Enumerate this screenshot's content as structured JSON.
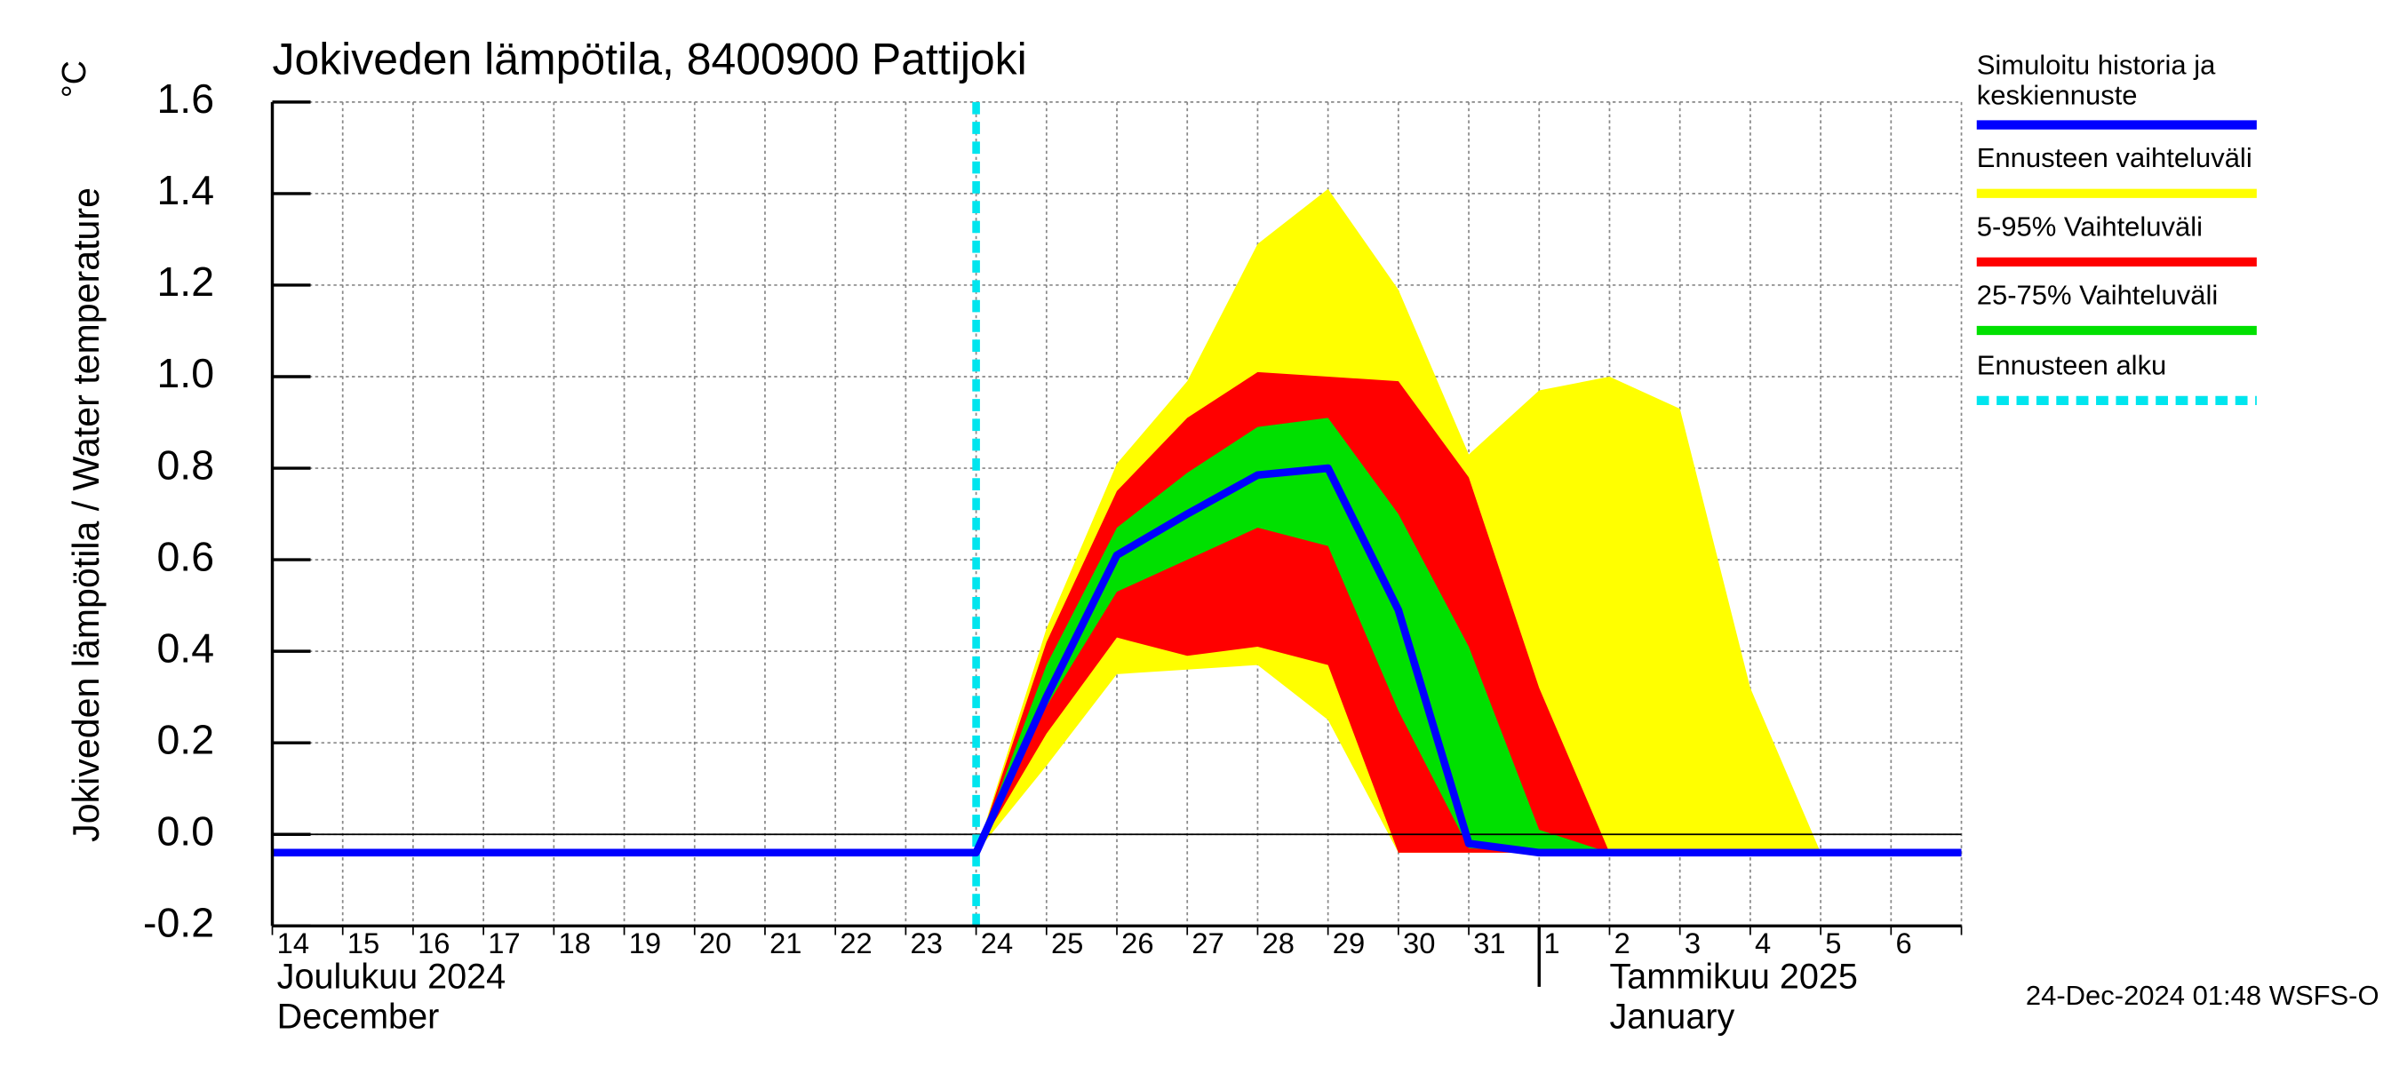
{
  "chart_data": {
    "type": "band-line",
    "title": "Jokiveden lämpötila, 8400900 Pattijoki",
    "y_label": "Jokiveden lämpötila / Water temperature",
    "y_unit": "°C",
    "categories": [
      "14",
      "15",
      "16",
      "17",
      "18",
      "19",
      "20",
      "21",
      "22",
      "23",
      "24",
      "25",
      "26",
      "27",
      "28",
      "29",
      "30",
      "31",
      "1",
      "2",
      "3",
      "4",
      "5",
      "6",
      null
    ],
    "months": [
      {
        "index": 0,
        "label": "Joulukuu  2024",
        "label_en": "December"
      },
      {
        "index": 18,
        "label": "Tammikuu  2025",
        "label_en": "January"
      }
    ],
    "ylim": [
      -0.2,
      1.6
    ],
    "yticks": [
      -0.2,
      {
        "value": 0,
        "label": "0.0"
      },
      0.2,
      0.4,
      0.6,
      0.8,
      {
        "value": 1,
        "label": "1.0"
      },
      1.2,
      1.4,
      1.6
    ],
    "grid": true,
    "bands": [
      {
        "name": "Ennusteen vaihteluväli",
        "color": "#ffff00",
        "high": [
          null,
          null,
          null,
          null,
          null,
          null,
          null,
          null,
          null,
          null,
          -0.04,
          0.45,
          0.81,
          0.99,
          1.29,
          1.41,
          1.19,
          0.83,
          0.97,
          1.0,
          0.93,
          0.32,
          -0.04,
          null,
          null
        ],
        "low": [
          null,
          null,
          null,
          null,
          null,
          null,
          null,
          null,
          null,
          null,
          -0.04,
          0.15,
          0.35,
          0.36,
          0.37,
          0.25,
          -0.04,
          -0.04,
          -0.04,
          -0.04,
          -0.04,
          -0.04,
          -0.04,
          null,
          null
        ]
      },
      {
        "name": "5-95% Vaihteluväli",
        "color": "#ff0000",
        "high": [
          null,
          null,
          null,
          null,
          null,
          null,
          null,
          null,
          null,
          null,
          -0.04,
          0.42,
          0.75,
          0.91,
          1.01,
          1.0,
          0.99,
          0.78,
          0.32,
          -0.04,
          null,
          null,
          null,
          null,
          null
        ],
        "low": [
          null,
          null,
          null,
          null,
          null,
          null,
          null,
          null,
          null,
          null,
          -0.04,
          0.22,
          0.43,
          0.39,
          0.41,
          0.37,
          -0.04,
          -0.04,
          -0.04,
          -0.04,
          null,
          null,
          null,
          null,
          null
        ]
      },
      {
        "name": "25-75% Vaihteluväli",
        "color": "#00e000",
        "high": [
          null,
          null,
          null,
          null,
          null,
          null,
          null,
          null,
          null,
          null,
          -0.04,
          0.37,
          0.67,
          0.79,
          0.89,
          0.91,
          0.7,
          0.41,
          0.01,
          -0.04,
          null,
          null,
          null,
          null,
          null
        ],
        "low": [
          null,
          null,
          null,
          null,
          null,
          null,
          null,
          null,
          null,
          null,
          -0.04,
          0.28,
          0.53,
          0.6,
          0.67,
          0.63,
          0.27,
          -0.03,
          -0.04,
          -0.04,
          null,
          null,
          null,
          null,
          null
        ]
      }
    ],
    "series": [
      {
        "name": "Simuloitu historia ja keskiennuste",
        "color": "#0000ff",
        "values": [
          -0.04,
          -0.04,
          -0.04,
          -0.04,
          -0.04,
          -0.04,
          -0.04,
          -0.04,
          -0.04,
          -0.04,
          -0.04,
          0.3,
          0.61,
          0.7,
          0.785,
          0.8,
          0.49,
          -0.02,
          -0.04,
          -0.04,
          -0.04,
          -0.04,
          -0.04,
          -0.04,
          -0.04
        ]
      }
    ],
    "forecast_start": {
      "name": "Ennusteen alku",
      "color": "#00e5ee",
      "index": 10
    },
    "footer": "24-Dec-2024 01:48 WSFS-O"
  }
}
